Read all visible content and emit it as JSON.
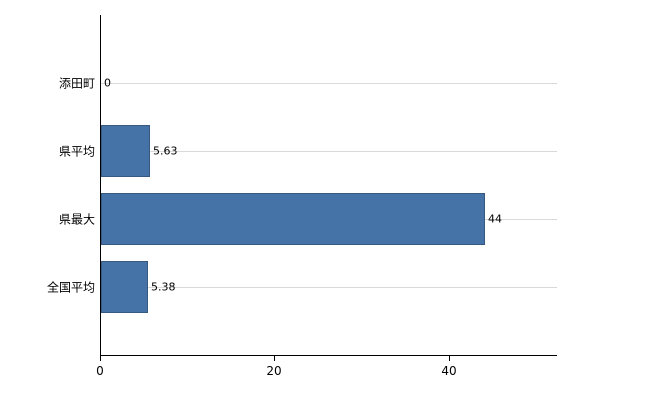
{
  "chart_data": {
    "type": "bar",
    "orientation": "horizontal",
    "categories": [
      "添田町",
      "県平均",
      "県最大",
      "全国平均"
    ],
    "values": [
      0,
      5.63,
      44,
      5.38
    ],
    "value_labels": [
      "0",
      "5.63",
      "44",
      "5.38"
    ],
    "xlim": [
      0,
      52.4
    ],
    "xticks": [
      0,
      20,
      40
    ],
    "xtick_labels": [
      "0",
      "20",
      "40"
    ],
    "bar_color": "#4572a7",
    "bar_border_color": "#35597f",
    "grid_color": "#d9d9d9",
    "axis_color": "#000000",
    "grid": true,
    "legend": "none",
    "title": ""
  }
}
